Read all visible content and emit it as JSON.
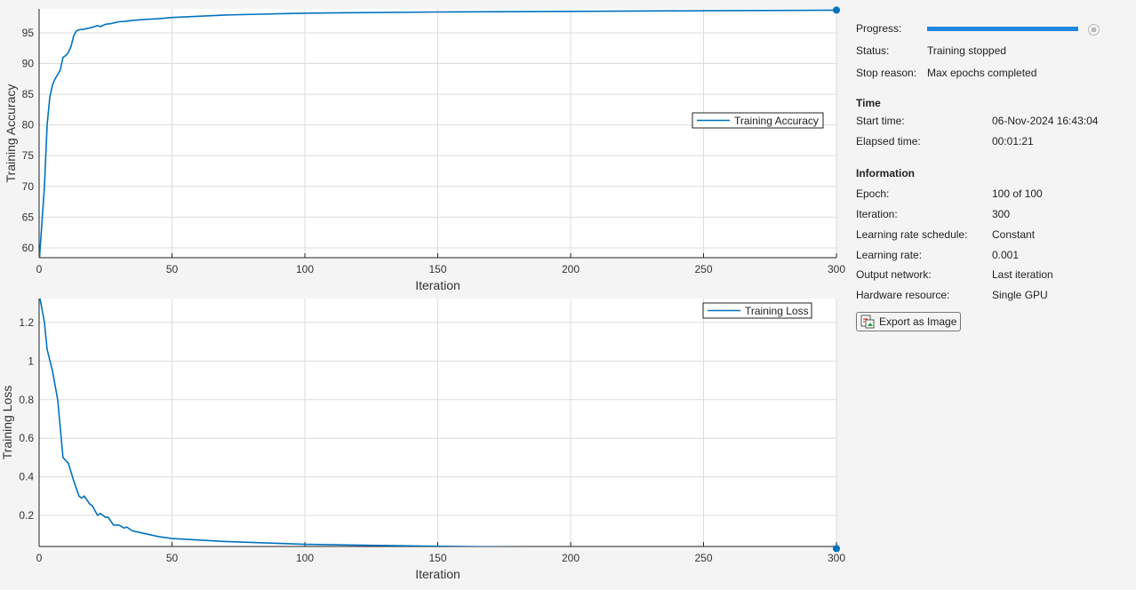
{
  "chart_data": [
    {
      "type": "line",
      "xlabel": "Iteration",
      "ylabel": "Training Accuracy",
      "xlim": [
        0,
        300
      ],
      "ylim": [
        58.4,
        98.9
      ],
      "xticks": [
        0,
        50,
        100,
        150,
        200,
        250,
        300
      ],
      "yticks": [
        60,
        65,
        70,
        75,
        80,
        85,
        90,
        95
      ],
      "grid": true,
      "legend_placement": "right",
      "series": [
        {
          "name": "Training Accuracy",
          "color": "#0072bd",
          "x": [
            0,
            2,
            3,
            4,
            5,
            6,
            7,
            8,
            9,
            10,
            11,
            12,
            13,
            14,
            15,
            17,
            20,
            22,
            23,
            25,
            27,
            30,
            33,
            35,
            40,
            45,
            50,
            70,
            100,
            150,
            200,
            250,
            300
          ],
          "y": [
            57.5,
            70,
            80,
            84.5,
            86.5,
            87.5,
            88.2,
            89,
            91,
            91.3,
            91.8,
            92.8,
            94.5,
            95.3,
            95.5,
            95.6,
            95.9,
            96.2,
            96,
            96.4,
            96.5,
            96.8,
            96.9,
            97,
            97.2,
            97.3,
            97.5,
            97.9,
            98.2,
            98.4,
            98.5,
            98.6,
            98.7
          ]
        }
      ]
    },
    {
      "type": "line",
      "xlabel": "Iteration",
      "ylabel": "Training Loss",
      "xlim": [
        0,
        300
      ],
      "ylim": [
        0.039,
        1.324
      ],
      "xticks": [
        0,
        50,
        100,
        150,
        200,
        250,
        300
      ],
      "yticks": [
        0.2,
        0.4,
        0.6,
        0.8,
        1,
        1.2
      ],
      "grid": true,
      "legend_placement": "top-right",
      "series": [
        {
          "name": "Training Loss",
          "color": "#0072bd",
          "x": [
            0,
            2,
            3,
            5,
            7,
            9,
            11,
            13,
            15,
            16,
            17,
            19,
            20,
            22,
            23,
            25,
            26,
            28,
            30,
            32,
            33,
            35,
            40,
            45,
            50,
            70,
            100,
            150,
            200,
            250,
            300
          ],
          "y": [
            1.35,
            1.2,
            1.06,
            0.95,
            0.8,
            0.5,
            0.47,
            0.38,
            0.3,
            0.29,
            0.3,
            0.26,
            0.25,
            0.2,
            0.21,
            0.19,
            0.19,
            0.15,
            0.15,
            0.135,
            0.14,
            0.12,
            0.105,
            0.09,
            0.08,
            0.065,
            0.05,
            0.04,
            0.033,
            0.03,
            0.028
          ]
        }
      ]
    }
  ],
  "panel": {
    "progress_label": "Progress:",
    "progress": 1.0,
    "status_label": "Status:",
    "status": "Training stopped",
    "stop_reason_label": "Stop reason:",
    "stop_reason": "Max epochs completed",
    "time_heading": "Time",
    "start_time_label": "Start time:",
    "start_time": "06-Nov-2024 16:43:04",
    "elapsed_label": "Elapsed time:",
    "elapsed": "00:01:21",
    "info_heading": "Information",
    "epoch_label": "Epoch:",
    "epoch": "100 of 100",
    "iteration_label": "Iteration:",
    "iteration": "300",
    "lr_schedule_label": "Learning rate schedule:",
    "lr_schedule": "Constant",
    "lr_label": "Learning rate:",
    "lr": "0.001",
    "output_label": "Output network:",
    "output": "Last iteration",
    "hw_label": "Hardware resource:",
    "hw": "Single GPU",
    "export_label": "Export as Image"
  }
}
